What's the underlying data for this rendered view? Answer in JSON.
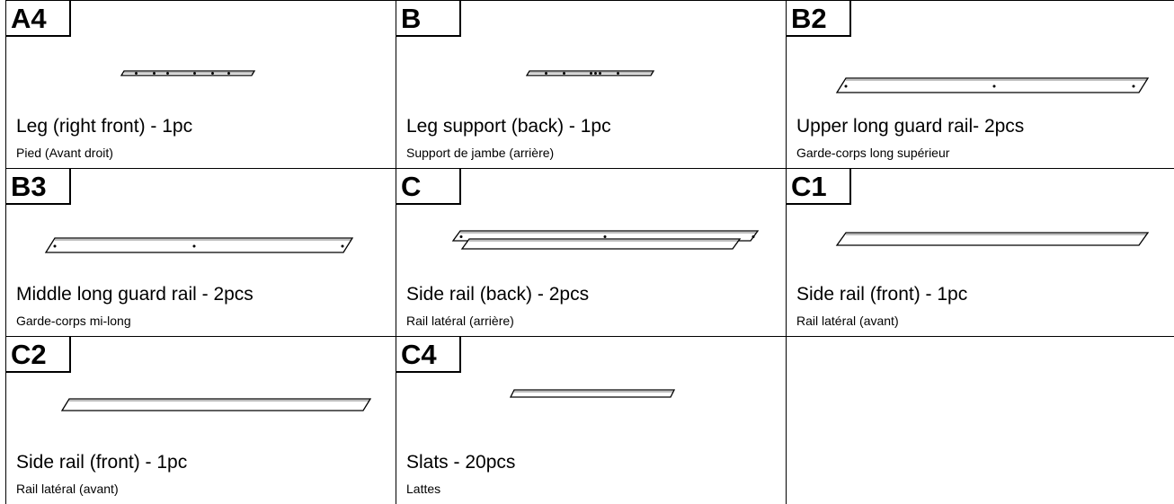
{
  "parts": [
    {
      "id": "A4",
      "name": "Leg (right front) - 1pc",
      "french": "Pied (Avant droit)"
    },
    {
      "id": "B",
      "name": "Leg support (back) - 1pc",
      "french": "Support de jambe (arrière)"
    },
    {
      "id": "B2",
      "name": "Upper long guard rail- 2pcs",
      "french": "Garde-corps long supérieur"
    },
    {
      "id": "B3",
      "name": "Middle long guard rail - 2pcs",
      "french": "Garde-corps mi-long"
    },
    {
      "id": "C",
      "name": "Side rail (back) - 2pcs",
      "french": "Rail latéral (arrière)"
    },
    {
      "id": "C1",
      "name": "Side rail (front) - 1pc",
      "french": "Rail latéral (avant)"
    },
    {
      "id": "C2",
      "name": "Side rail (front) - 1pc",
      "french": "Rail latéral (avant)"
    },
    {
      "id": "C4",
      "name": "Slats - 20pcs",
      "french": "Lattes"
    }
  ]
}
